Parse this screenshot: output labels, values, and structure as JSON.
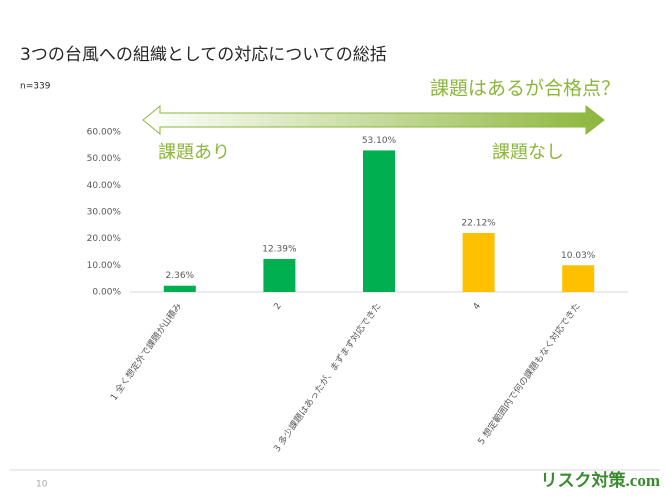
{
  "chart_data": {
    "type": "bar",
    "title": "3つの台風への組織としての対応についての総括",
    "subtitle": "n=339",
    "annotations": [
      "課題はあるが合格点？",
      "課題あり",
      "課題なし"
    ],
    "categories": [
      "1 全く想定外で課題が山積み",
      "2",
      "3 多少課題はあったが、まずまず対応できた",
      "4",
      "5 想定範囲内で何の課題もなく対応できた"
    ],
    "values": [
      2.36,
      12.39,
      53.1,
      22.12,
      10.03
    ],
    "value_labels": [
      "2.36%",
      "12.39%",
      "53.10%",
      "22.12%",
      "10.03%"
    ],
    "colors": [
      "#00b050",
      "#00b050",
      "#00b050",
      "#ffc000",
      "#ffc000"
    ],
    "ylim": [
      0,
      60
    ],
    "yticks": [
      {
        "value": 0,
        "label": "0.00%"
      },
      {
        "value": 10,
        "label": "10.00%"
      },
      {
        "value": 20,
        "label": "20.00%"
      },
      {
        "value": 30,
        "label": "30.00%"
      },
      {
        "value": 40,
        "label": "40.00%"
      },
      {
        "value": 50,
        "label": "50.00%"
      },
      {
        "value": 60,
        "label": "60.00%"
      }
    ],
    "grid": false
  },
  "footer": {
    "page": "10",
    "logo": "リスク対策.com"
  }
}
